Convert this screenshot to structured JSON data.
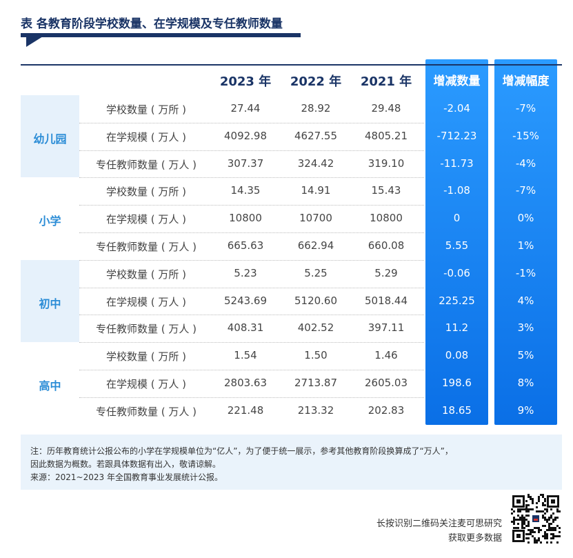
{
  "title": "表  各教育阶段学校数量、在学规模及专任教师数量",
  "headers": {
    "years": [
      "2023 年",
      "2022 年",
      "2021 年"
    ],
    "change_count": "增减数量",
    "change_rate": "增减幅度"
  },
  "groups": [
    {
      "name": "幼儿园",
      "rows": [
        {
          "metric": "学校数量 ( 万所 )",
          "y2023": "27.44",
          "y2022": "28.92",
          "y2021": "29.48",
          "delta": "-2.04",
          "pct": "-7%"
        },
        {
          "metric": "在学规模 ( 万人 )",
          "y2023": "4092.98",
          "y2022": "4627.55",
          "y2021": "4805.21",
          "delta": "-712.23",
          "pct": "-15%"
        },
        {
          "metric": "专任教师数量 ( 万人 )",
          "y2023": "307.37",
          "y2022": "324.42",
          "y2021": "319.10",
          "delta": "-11.73",
          "pct": "-4%"
        }
      ]
    },
    {
      "name": "小学",
      "rows": [
        {
          "metric": "学校数量 ( 万所 )",
          "y2023": "14.35",
          "y2022": "14.91",
          "y2021": "15.43",
          "delta": "-1.08",
          "pct": "-7%"
        },
        {
          "metric": "在学规模 ( 万人 )",
          "y2023": "10800",
          "y2022": "10700",
          "y2021": "10800",
          "delta": "0",
          "pct": "0%"
        },
        {
          "metric": "专任教师数量 ( 万人 )",
          "y2023": "665.63",
          "y2022": "662.94",
          "y2021": "660.08",
          "delta": "5.55",
          "pct": "1%"
        }
      ]
    },
    {
      "name": "初中",
      "rows": [
        {
          "metric": "学校数量 ( 万所 )",
          "y2023": "5.23",
          "y2022": "5.25",
          "y2021": "5.29",
          "delta": "-0.06",
          "pct": "-1%"
        },
        {
          "metric": "在学规模 ( 万人 )",
          "y2023": "5243.69",
          "y2022": "5120.60",
          "y2021": "5018.44",
          "delta": "225.25",
          "pct": "4%"
        },
        {
          "metric": "专任教师数量 ( 万人 )",
          "y2023": "408.31",
          "y2022": "402.52",
          "y2021": "397.11",
          "delta": "11.2",
          "pct": "3%"
        }
      ]
    },
    {
      "name": "高中",
      "rows": [
        {
          "metric": "学校数量 ( 万所 )",
          "y2023": "1.54",
          "y2022": "1.50",
          "y2021": "1.46",
          "delta": "0.08",
          "pct": "5%"
        },
        {
          "metric": "在学规模 ( 万人 )",
          "y2023": "2803.63",
          "y2022": "2713.87",
          "y2021": "2605.03",
          "delta": "198.6",
          "pct": "8%"
        },
        {
          "metric": "专任教师数量 ( 万人 )",
          "y2023": "221.48",
          "y2022": "213.32",
          "y2021": "202.83",
          "delta": "18.65",
          "pct": "9%"
        }
      ]
    }
  ],
  "notes": {
    "line1": "注：历年教育统计公报公布的小学在学规模单位为“亿人”，为了便于统一展示，参考其他教育阶段换算成了“万人”，",
    "line2": "因此数据为概数。若跟具体数据有出入，敬请谅解。",
    "line3": "来源：2021~2023 年全国教育事业发展统计公报。"
  },
  "footer": {
    "line1": "长按识别二维码关注麦可思研究",
    "line2": "获取更多数据"
  },
  "colors": {
    "navy": "#1a3466",
    "highlight_blue": "#1a86f2",
    "group_label": "#2a8cd6",
    "group_bg": "#e6f1fb",
    "note_bg": "#eaf3fb"
  },
  "icons": {
    "qr": "qr-code-icon"
  }
}
